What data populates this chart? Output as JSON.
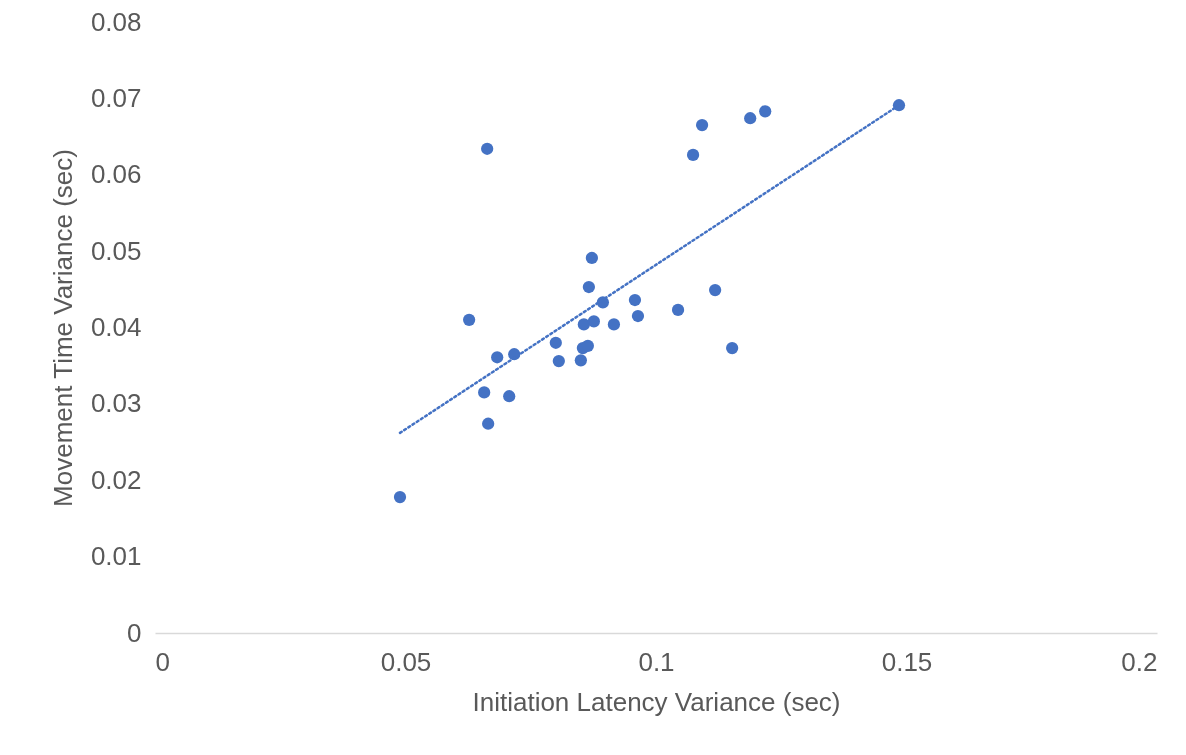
{
  "chart_data": {
    "type": "scatter",
    "xlabel": "Initiation Latency Variance (sec)",
    "ylabel": "Movement Time Variance (sec)",
    "xlim": [
      0,
      0.2
    ],
    "xticks": [
      0,
      0.05,
      0.1,
      0.15,
      0.2
    ],
    "ylim": [
      0,
      0.08
    ],
    "yticks": [
      0,
      0.01,
      0.02,
      0.03,
      0.04,
      0.05,
      0.06,
      0.07,
      0.08
    ],
    "grid": false,
    "marker": "circle",
    "series": [
      {
        "color": "#4472c4",
        "x": [
          0.0489,
          0.0663,
          0.0627,
          0.0657,
          0.0665,
          0.0683,
          0.0707,
          0.0717,
          0.08,
          0.0806,
          0.085,
          0.0854,
          0.0856,
          0.0864,
          0.0866,
          0.0872,
          0.0876,
          0.0894,
          0.0916,
          0.0958,
          0.0964,
          0.1044,
          0.1074,
          0.1092,
          0.1118,
          0.1152,
          0.1188,
          0.1218,
          0.1485
        ],
        "values": [
          0.0178,
          0.0634,
          0.041,
          0.0315,
          0.0274,
          0.0361,
          0.031,
          0.0365,
          0.038,
          0.0356,
          0.0357,
          0.0373,
          0.0404,
          0.0376,
          0.0453,
          0.0491,
          0.0408,
          0.0433,
          0.0404,
          0.0436,
          0.0415,
          0.0423,
          0.0626,
          0.0665,
          0.0449,
          0.0373,
          0.0674,
          0.0683,
          0.0691
        ]
      },
      {
        "type": "line",
        "color": "#4472c4",
        "line_style": "dotted",
        "marker": "none",
        "x": [
          0.0489,
          0.1485
        ],
        "values": [
          0.0262,
          0.0691
        ]
      }
    ]
  }
}
